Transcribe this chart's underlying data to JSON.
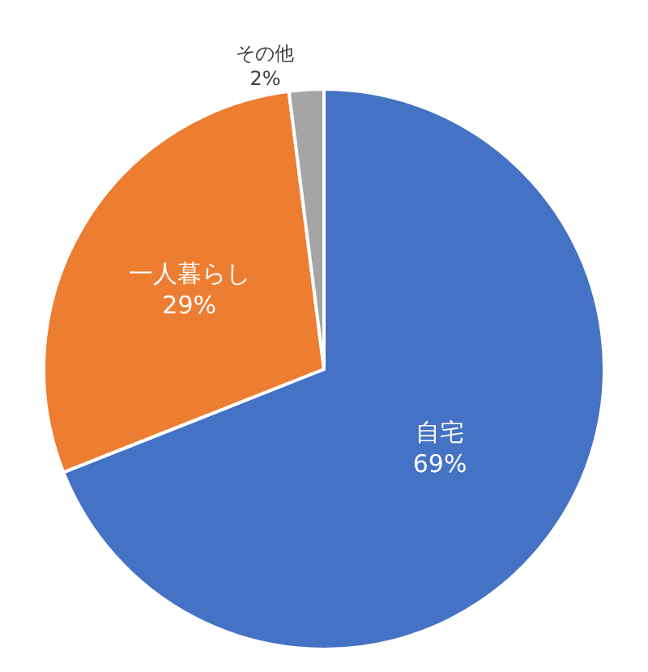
{
  "chart_data": {
    "type": "pie",
    "categories": [
      "自宅",
      "一人暮らし",
      "その他"
    ],
    "values": [
      69,
      29,
      2
    ],
    "colors": [
      "#4472c4",
      "#ed7d31",
      "#a5a5a5"
    ],
    "value_labels": [
      "69%",
      "29%",
      "2%"
    ],
    "legend": false
  }
}
